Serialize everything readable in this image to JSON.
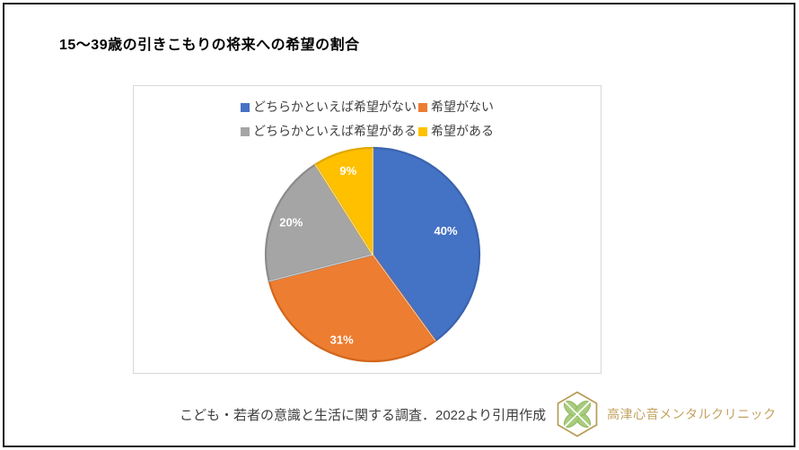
{
  "header": {
    "title": "15〜39歳の引きこもりの将来への希望の割合"
  },
  "chart_data": {
    "type": "pie",
    "title": "15〜39歳の引きこもりの将来への希望の割合",
    "direction": "clockwise",
    "start_angle_deg": 0,
    "legend_position": "top",
    "legend_rows": [
      [
        0,
        1
      ],
      [
        2,
        3
      ]
    ],
    "slices": [
      {
        "label": "どちらかといえば希望がない",
        "value": 40,
        "data_label": "40%",
        "color": "#4472C4",
        "edge_color": "#3B63AE",
        "label_radius_frac": 0.72
      },
      {
        "label": "希望がない",
        "value": 31,
        "data_label": "31%",
        "color": "#ED7D31",
        "edge_color": "#D2661C",
        "label_radius_frac": 0.85
      },
      {
        "label": "どちらかといえば希望がある",
        "value": 20,
        "data_label": "20%",
        "color": "#A5A5A5",
        "edge_color": "#8B8B8B",
        "label_radius_frac": 0.82
      },
      {
        "label": "希望がある",
        "value": 9,
        "data_label": "9%",
        "color": "#FFC000",
        "edge_color": "#E0A700",
        "label_radius_frac": 0.82
      }
    ]
  },
  "footer": {
    "citation": "こども・若者の意識と生活に関する調査．2022より引用作成",
    "clinic_name": "高津心音メンタルクリニック",
    "logo_icon": "hexagon-clover-logo",
    "logo_colors": {
      "hexagon": "#B79B55",
      "leaf": "#A9CB7E",
      "leaf_edge": "#8CB95B"
    }
  },
  "colors": {
    "frame_border": "#1A1A1A",
    "panel_border": "#D8D8D8",
    "legend_text": "#404040",
    "pie_label_text": "#FFFFFF",
    "citation_text": "#3D3D3D",
    "clinic_text": "#C2A25E",
    "background": "#FFFFFF"
  }
}
